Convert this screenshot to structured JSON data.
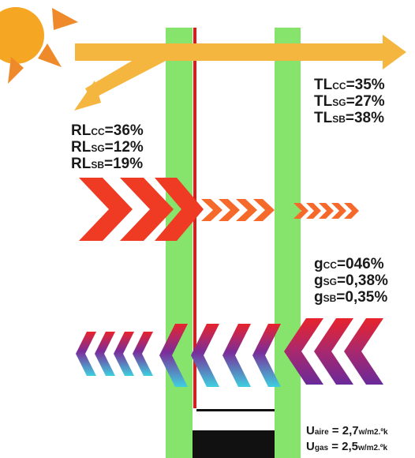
{
  "colors": {
    "sun": "#f5a623",
    "sun_rays": "#ef8a2a",
    "light_arrow": "#f4b63f",
    "glass_pane": "#86e36b",
    "red_line": "#e0191b",
    "heat_red": "#ef3a24",
    "heat_orange": "#f56a2a",
    "chevron_purple": "#7a2d9a",
    "chevron_cyan": "#3ecfe0",
    "chevron_red": "#e8232d",
    "frame_black": "#111111"
  },
  "transmission": {
    "cc": {
      "prefix": "TL",
      "sub": "CC",
      "value": "=35%"
    },
    "sg": {
      "prefix": "TL",
      "sub": "SG",
      "value": "=27%"
    },
    "sb": {
      "prefix": "TL",
      "sub": "SB",
      "value": "=38%"
    }
  },
  "reflection": {
    "cc": {
      "prefix": "RL",
      "sub": "CC",
      "value": "=36%"
    },
    "sg": {
      "prefix": "RL",
      "sub": "SG",
      "value": "=12%"
    },
    "sb": {
      "prefix": "RL",
      "sub": "SB",
      "value": "=19%"
    }
  },
  "solar_factor": {
    "cc": {
      "prefix": "g",
      "sub": "CC",
      "value": "=046%"
    },
    "sg": {
      "prefix": "g",
      "sub": "SG",
      "value": "=0,38%"
    },
    "sb": {
      "prefix": "g",
      "sub": "SB",
      "value": "=0,35%"
    }
  },
  "u_values": {
    "aire": {
      "prefix": "U",
      "sub": "aire",
      "value": " = 2,7",
      "unit": "w/m2.ºk"
    },
    "gas": {
      "prefix": "U",
      "sub": "gas",
      "value": " = 2,5",
      "unit": "w/m2.ºk"
    }
  }
}
